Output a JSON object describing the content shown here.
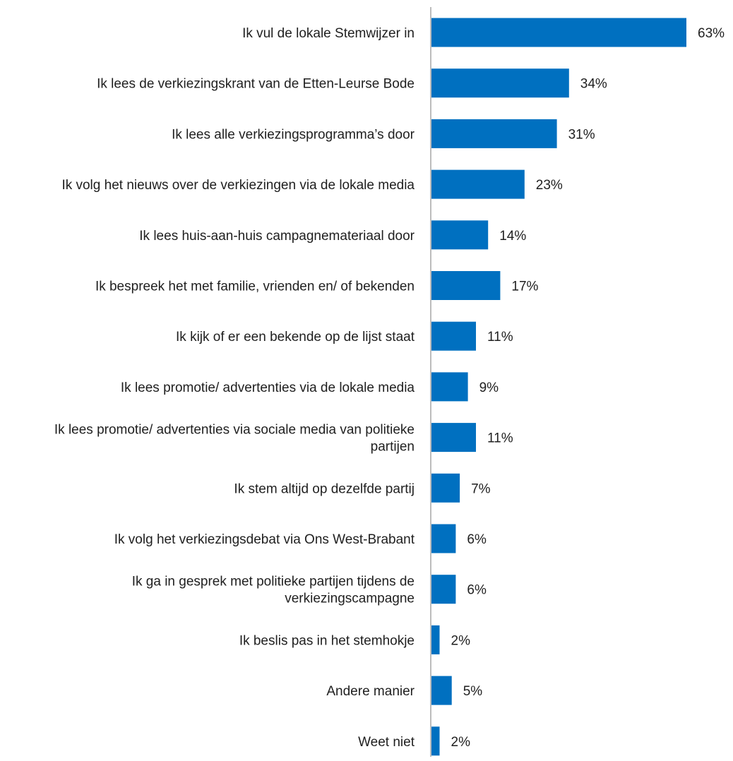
{
  "chart_data": {
    "type": "bar",
    "orientation": "horizontal",
    "categories": [
      "Ik vul de lokale Stemwijzer in",
      "Ik lees de verkiezingskrant van de Etten-Leurse Bode",
      "Ik lees alle verkiezingsprogramma’s door",
      "Ik volg het nieuws over de verkiezingen via de lokale media",
      "Ik lees huis-aan-huis campagnemateriaal door",
      "Ik bespreek het met familie, vrienden en/ of bekenden",
      "Ik kijk of er een bekende op de lijst staat",
      "Ik lees promotie/ advertenties via de lokale media",
      "Ik lees promotie/ advertenties via sociale media van politieke partijen",
      "Ik stem altijd op dezelfde partij",
      "Ik volg het verkiezingsdebat via Ons West-Brabant",
      "Ik ga in gesprek met politieke partijen tijdens de verkiezingscampagne",
      "Ik beslis pas in het stemhokje",
      "Andere manier",
      "Weet niet"
    ],
    "values": [
      63,
      34,
      31,
      23,
      14,
      17,
      11,
      9,
      11,
      7,
      6,
      6,
      2,
      5,
      2
    ],
    "value_labels": [
      "63%",
      "34%",
      "31%",
      "23%",
      "14%",
      "17%",
      "11%",
      "9%",
      "11%",
      "7%",
      "6%",
      "6%",
      "2%",
      "5%",
      "2%"
    ],
    "value_unit": "%",
    "xlim": [
      0,
      63
    ],
    "bar_color": "#0070C0",
    "axis_color": "#A6A6A6",
    "grid": false,
    "legend": false,
    "title": "",
    "xlabel": "",
    "ylabel": ""
  }
}
